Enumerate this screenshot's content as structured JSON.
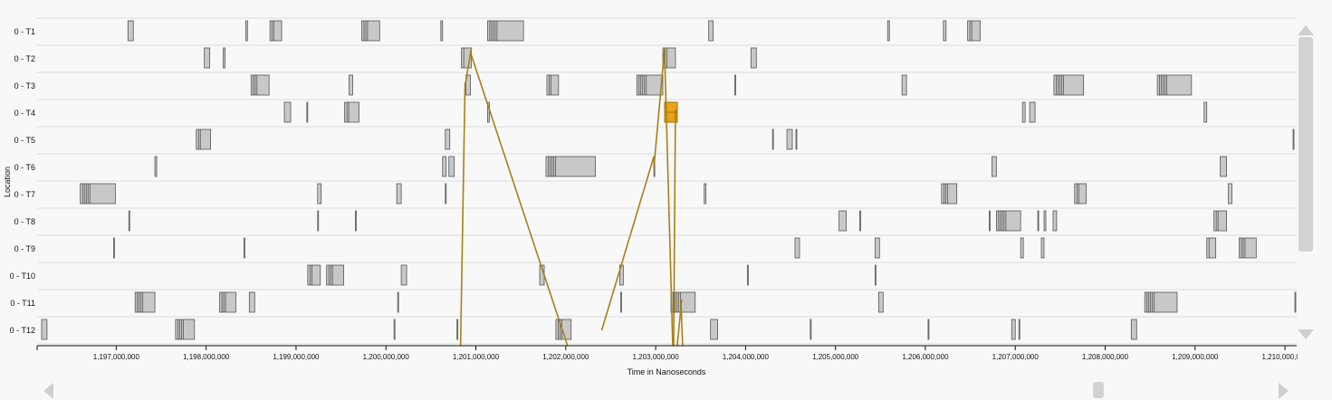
{
  "chart_data": {
    "type": "timeline",
    "ylabel": "Location",
    "xlabel": "Time in Nanoseconds",
    "xlim": [
      1196120000,
      1210130000
    ],
    "x_ticks": [
      1197000000,
      1198000000,
      1199000000,
      1200000000,
      1201000000,
      1202000000,
      1203000000,
      1204000000,
      1205000000,
      1206000000,
      1207000000,
      1208000000,
      1209000000,
      1210000000
    ],
    "tick_labels": [
      "1,197,000,000",
      "1,198,000,000",
      "1,199,000,000",
      "1,200,000,000",
      "1,201,000,000",
      "1,202,000,000",
      "1,203,000,000",
      "1,204,000,000",
      "1,205,000,000",
      "1,206,000,000",
      "1,207,000,000",
      "1,208,000,000",
      "1,209,000,000",
      "1,210,000,000"
    ],
    "rows": [
      {
        "label": "0 - T1",
        "intervals": [
          [
            1197130000,
            1197190000
          ],
          [
            1198440000,
            1198460000
          ],
          [
            1198710000,
            1198840000
          ],
          [
            1199730000,
            1199930000
          ],
          [
            1200610000,
            1200630000
          ],
          [
            1201130000,
            1201530000
          ],
          [
            1203590000,
            1203640000
          ],
          [
            1205580000,
            1205600000
          ],
          [
            1206200000,
            1206230000
          ],
          [
            1206470000,
            1206610000
          ]
        ]
      },
      {
        "label": "0 - T2",
        "intervals": [
          [
            1197980000,
            1198040000
          ],
          [
            1198190000,
            1198210000
          ],
          [
            1200840000,
            1200950000
          ],
          [
            1203080000,
            1203220000
          ],
          [
            1204060000,
            1204120000
          ]
        ]
      },
      {
        "label": "0 - T3",
        "intervals": [
          [
            1198500000,
            1198700000
          ],
          [
            1199590000,
            1199630000
          ],
          [
            1200890000,
            1200940000
          ],
          [
            1201790000,
            1201920000
          ],
          [
            1202790000,
            1203080000
          ],
          [
            1203880000,
            1203890000
          ],
          [
            1205740000,
            1205790000
          ],
          [
            1207430000,
            1207760000
          ],
          [
            1208580000,
            1208960000
          ]
        ]
      },
      {
        "label": "0 - T4",
        "intervals": [
          [
            1198870000,
            1198940000
          ],
          [
            1199120000,
            1199130000
          ],
          [
            1199540000,
            1199700000
          ],
          [
            1201130000,
            1201150000
          ],
          [
            1203100000,
            1203240000
          ],
          [
            1207080000,
            1207110000
          ],
          [
            1207160000,
            1207220000
          ],
          [
            1209100000,
            1209130000
          ]
        ]
      },
      {
        "label": "0 - T5",
        "intervals": [
          [
            1197890000,
            1198050000
          ],
          [
            1200660000,
            1200710000
          ],
          [
            1204300000,
            1204310000
          ],
          [
            1204460000,
            1204520000
          ],
          [
            1204560000,
            1204570000
          ],
          [
            1210090000,
            1210400000
          ]
        ]
      },
      {
        "label": "0 - T6",
        "intervals": [
          [
            1197430000,
            1197450000
          ],
          [
            1200630000,
            1200670000
          ],
          [
            1200700000,
            1200760000
          ],
          [
            1201780000,
            1202330000
          ],
          [
            1202980000,
            1202990000
          ],
          [
            1206740000,
            1206790000
          ],
          [
            1209280000,
            1209350000
          ]
        ]
      },
      {
        "label": "0 - T7",
        "intervals": [
          [
            1196600000,
            1196990000
          ],
          [
            1199240000,
            1199280000
          ],
          [
            1200120000,
            1200170000
          ],
          [
            1200660000,
            1200670000
          ],
          [
            1203540000,
            1203560000
          ],
          [
            1206180000,
            1206350000
          ],
          [
            1207660000,
            1207790000
          ],
          [
            1209370000,
            1209410000
          ]
        ]
      },
      {
        "label": "0 - T8",
        "intervals": [
          [
            1197140000,
            1197150000
          ],
          [
            1199240000,
            1199250000
          ],
          [
            1199660000,
            1199670000
          ],
          [
            1205040000,
            1205120000
          ],
          [
            1205270000,
            1205280000
          ],
          [
            1206710000,
            1206720000
          ],
          [
            1206790000,
            1207060000
          ],
          [
            1207250000,
            1207260000
          ],
          [
            1207320000,
            1207340000
          ],
          [
            1207420000,
            1207460000
          ],
          [
            1209210000,
            1209350000
          ]
        ]
      },
      {
        "label": "0 - T9",
        "intervals": [
          [
            1196970000,
            1196980000
          ],
          [
            1198420000,
            1198430000
          ],
          [
            1204550000,
            1204600000
          ],
          [
            1205440000,
            1205490000
          ],
          [
            1207060000,
            1207090000
          ],
          [
            1207290000,
            1207320000
          ],
          [
            1209130000,
            1209230000
          ],
          [
            1209490000,
            1209680000
          ]
        ]
      },
      {
        "label": "0 - T10",
        "intervals": [
          [
            1199130000,
            1199270000
          ],
          [
            1199340000,
            1199530000
          ],
          [
            1200170000,
            1200230000
          ],
          [
            1201710000,
            1201760000
          ],
          [
            1202600000,
            1202640000
          ],
          [
            1204020000,
            1204030000
          ],
          [
            1205440000,
            1205450000
          ]
        ]
      },
      {
        "label": "0 - T11",
        "intervals": [
          [
            1197210000,
            1197430000
          ],
          [
            1198150000,
            1198330000
          ],
          [
            1198480000,
            1198540000
          ],
          [
            1200130000,
            1200140000
          ],
          [
            1202610000,
            1202620000
          ],
          [
            1203170000,
            1203440000
          ],
          [
            1205480000,
            1205530000
          ],
          [
            1208440000,
            1208800000
          ],
          [
            1210110000,
            1210130000
          ]
        ]
      },
      {
        "label": "0 - T12",
        "intervals": [
          [
            1196170000,
            1196230000
          ],
          [
            1197660000,
            1197870000
          ],
          [
            1200090000,
            1200100000
          ],
          [
            1200790000,
            1200800000
          ],
          [
            1201890000,
            1202060000
          ],
          [
            1203610000,
            1203690000
          ],
          [
            1204720000,
            1204730000
          ],
          [
            1206030000,
            1206040000
          ],
          [
            1206960000,
            1207000000
          ],
          [
            1207040000,
            1207050000
          ],
          [
            1208290000,
            1208350000
          ]
        ]
      }
    ],
    "highlight": {
      "row": "0 - T4",
      "x_start": 1203100000,
      "x_end": 1203240000,
      "color": "#e8a317"
    },
    "messages": [
      {
        "from_row": "0 - T3",
        "x1": 1200880000,
        "to_row": "0 - T12",
        "x2": 1200830000
      },
      {
        "from_row": "0 - T3",
        "x1": 1200880000,
        "to_row": "0 - T2",
        "x2": 1200950000
      },
      {
        "from_row": "0 - T2",
        "x1": 1200950000,
        "to_row": "0 - T12",
        "x2": 1202020000
      },
      {
        "from_row": "0 - T12",
        "x1": 1202400000,
        "to_row": "0 - T6",
        "x2": 1202980000
      },
      {
        "from_row": "0 - T6",
        "x1": 1202980000,
        "to_row": "0 - T2",
        "x2": 1203100000
      },
      {
        "from_row": "0 - T2",
        "x1": 1203100000,
        "to_row": "0 - T12",
        "x2": 1203190000
      },
      {
        "from_row": "0 - T4",
        "x1": 1203220000,
        "to_row": "0 - T12",
        "x2": 1203200000
      },
      {
        "from_row": "0 - T11",
        "x1": 1203280000,
        "to_row": "0 - T12",
        "x2": 1203300000
      },
      {
        "from_row": "0 - T11",
        "x1": 1203290000,
        "to_row": "0 - T12",
        "x2": 1203240000
      }
    ],
    "line_color": "#a8801a",
    "bar_fill": "#c8c8c8",
    "bar_stroke": "#555555"
  }
}
